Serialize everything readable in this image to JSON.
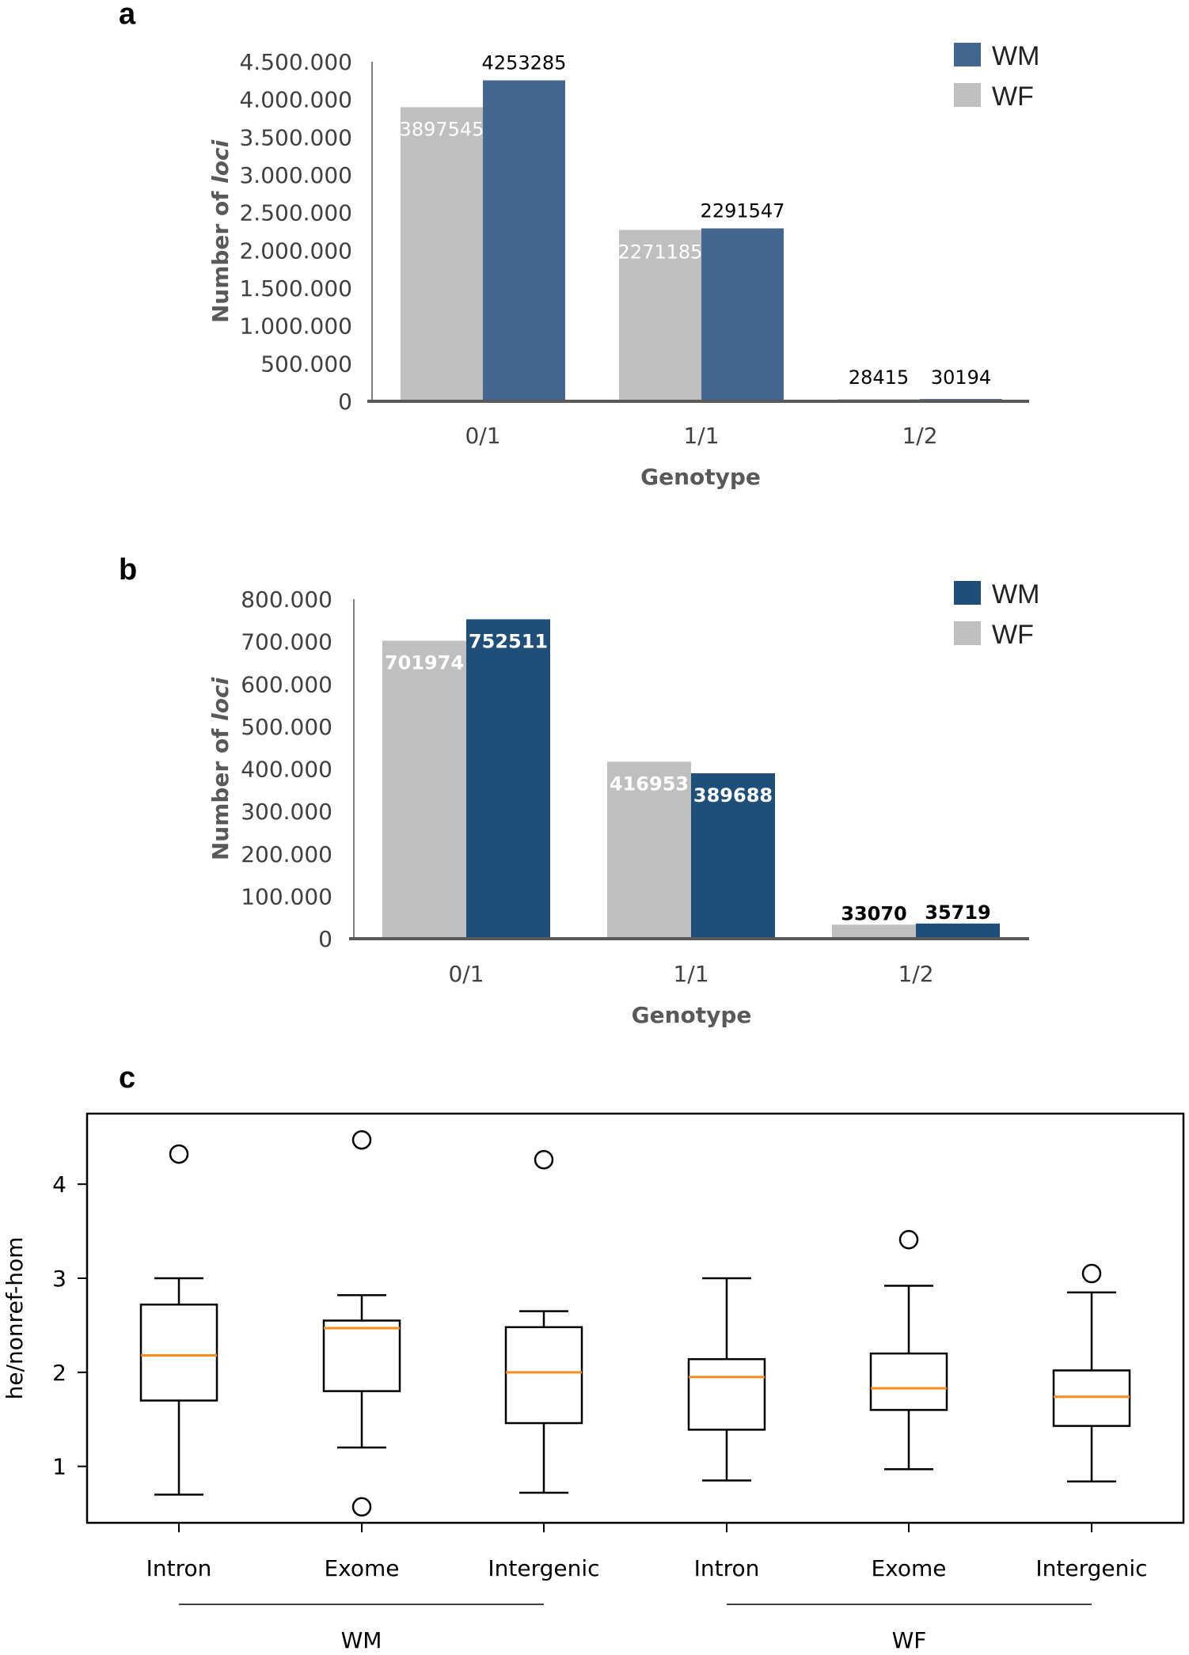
{
  "chart_data": [
    {
      "panel": "a",
      "type": "bar",
      "title": "",
      "xlabel": "Genotype",
      "ylabel_prefix": "Number of ",
      "ylabel_italic": "loci",
      "categories": [
        "0/1",
        "1/1",
        "1/2"
      ],
      "series": [
        {
          "name": "WF",
          "color": "#bfbfbf",
          "values": [
            3897545,
            2271185,
            28415
          ]
        },
        {
          "name": "WM",
          "color": "#44678f",
          "values": [
            4253285,
            2291547,
            30194
          ]
        }
      ],
      "ylim": [
        0,
        4500000
      ],
      "yticks": [
        0,
        500000,
        1000000,
        1500000,
        2000000,
        2500000,
        3000000,
        3500000,
        4000000,
        4500000
      ],
      "ytick_labels": [
        "0",
        "500.000",
        "1.000.000",
        "1.500.000",
        "2.000.000",
        "2.500.000",
        "3.000.000",
        "3.500.000",
        "4.000.000",
        "4.500.000"
      ],
      "value_labels": [
        [
          "3897545",
          "2271185",
          "28415"
        ],
        [
          "4253285",
          "2291547",
          "30194"
        ]
      ],
      "legend": [
        "WM",
        "WF"
      ],
      "legend_position": "top-right"
    },
    {
      "panel": "b",
      "type": "bar",
      "title": "",
      "xlabel": "Genotype",
      "ylabel_prefix": "Number of ",
      "ylabel_italic": "loci",
      "categories": [
        "0/1",
        "1/1",
        "1/2"
      ],
      "series": [
        {
          "name": "WF",
          "color": "#bfbfbf",
          "values": [
            701974,
            416953,
            33070
          ]
        },
        {
          "name": "WM",
          "color": "#1f4e79",
          "values": [
            752511,
            389688,
            35719
          ]
        }
      ],
      "ylim": [
        0,
        800000
      ],
      "yticks": [
        0,
        100000,
        200000,
        300000,
        400000,
        500000,
        600000,
        700000,
        800000
      ],
      "ytick_labels": [
        "0",
        "100.000",
        "200.000",
        "300.000",
        "400.000",
        "500.000",
        "600.000",
        "700.000",
        "800.000"
      ],
      "value_labels": [
        [
          "701974",
          "416953",
          "33070"
        ],
        [
          "752511",
          "389688",
          "35719"
        ]
      ],
      "legend": [
        "WM",
        "WF"
      ],
      "legend_position": "top-right"
    },
    {
      "panel": "c",
      "type": "box",
      "title": "",
      "xlabel": "",
      "ylabel": "he/nonref-hom",
      "ylim": [
        0.4,
        4.75
      ],
      "yticks": [
        1,
        2,
        3,
        4
      ],
      "ytick_labels": [
        "1",
        "2",
        "3",
        "4"
      ],
      "categories": [
        "Intron",
        "Exome",
        "Intergenic",
        "Intron",
        "Exome",
        "Intergenic"
      ],
      "groups": [
        {
          "name": "WM",
          "from": 0,
          "to": 2
        },
        {
          "name": "WF",
          "from": 3,
          "to": 5
        }
      ],
      "boxes": [
        {
          "whisker_low": 0.7,
          "q1": 1.7,
          "median": 2.18,
          "q3": 2.72,
          "whisker_high": 3.0,
          "outliers": [
            4.32
          ]
        },
        {
          "whisker_low": 1.2,
          "q1": 1.8,
          "median": 2.47,
          "q3": 2.55,
          "whisker_high": 2.82,
          "outliers": [
            4.47,
            0.57
          ]
        },
        {
          "whisker_low": 0.72,
          "q1": 1.46,
          "median": 2.0,
          "q3": 2.48,
          "whisker_high": 2.65,
          "outliers": [
            4.26
          ]
        },
        {
          "whisker_low": 0.85,
          "q1": 1.39,
          "median": 1.95,
          "q3": 2.14,
          "whisker_high": 3.0,
          "outliers": []
        },
        {
          "whisker_low": 0.97,
          "q1": 1.6,
          "median": 1.83,
          "q3": 2.2,
          "whisker_high": 2.92,
          "outliers": [
            3.41
          ]
        },
        {
          "whisker_low": 0.84,
          "q1": 1.43,
          "median": 1.74,
          "q3": 2.02,
          "whisker_high": 2.85,
          "outliers": [
            3.05
          ]
        }
      ],
      "box_color": "#000000",
      "median_color": "#ff8c1a"
    }
  ]
}
